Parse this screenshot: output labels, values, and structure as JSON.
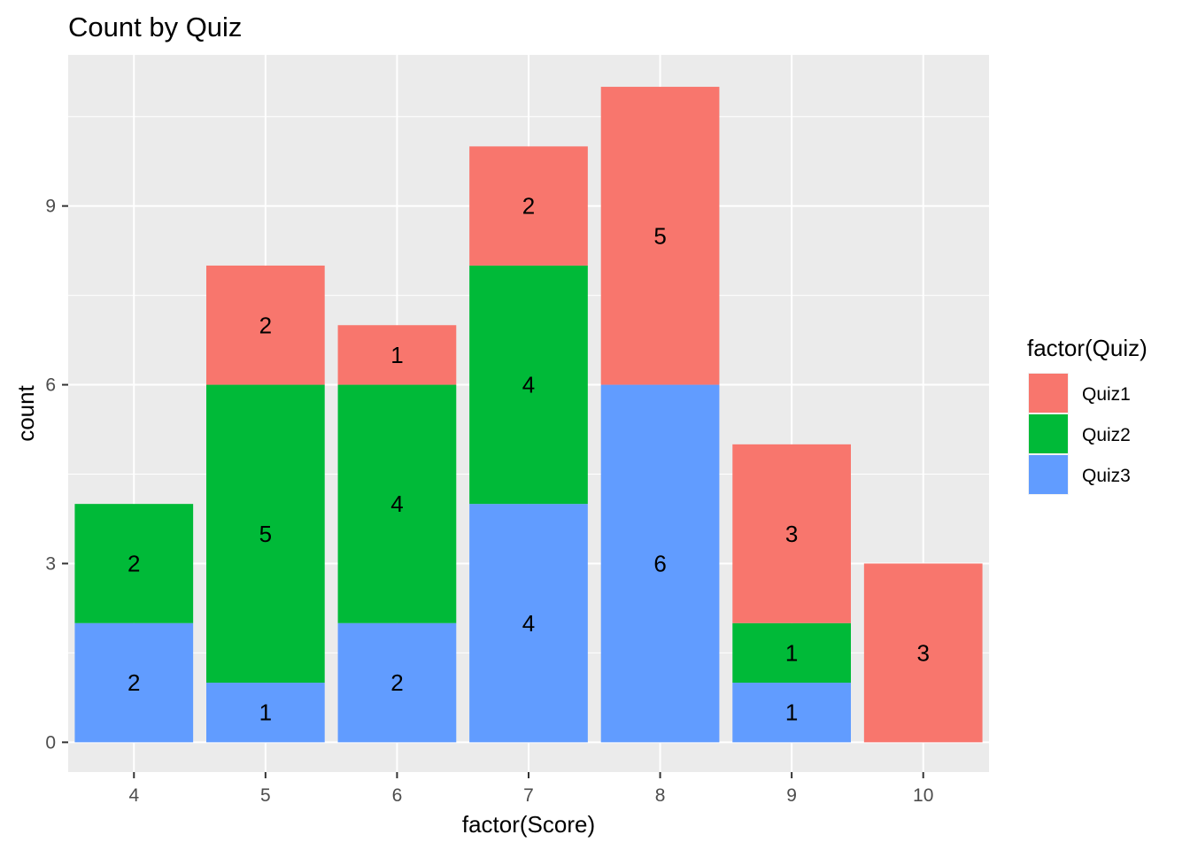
{
  "chart_data": {
    "type": "bar",
    "stacked": true,
    "title": "Count by Quiz",
    "xlabel": "factor(Score)",
    "ylabel": "count",
    "categories": [
      "4",
      "5",
      "6",
      "7",
      "8",
      "9",
      "10"
    ],
    "series": [
      {
        "name": "Quiz1",
        "color": "#F8766D",
        "values": [
          0,
          2,
          1,
          2,
          5,
          3,
          3
        ]
      },
      {
        "name": "Quiz2",
        "color": "#00BA38",
        "values": [
          2,
          5,
          4,
          4,
          0,
          1,
          0
        ]
      },
      {
        "name": "Quiz3",
        "color": "#619CFF",
        "values": [
          2,
          1,
          2,
          4,
          6,
          1,
          0
        ]
      }
    ],
    "ylim": [
      -0.5,
      11.5
    ],
    "yticks": [
      0,
      3,
      6,
      9
    ],
    "grid": true,
    "legend": {
      "title": "factor(Quiz)",
      "position": "right"
    }
  }
}
